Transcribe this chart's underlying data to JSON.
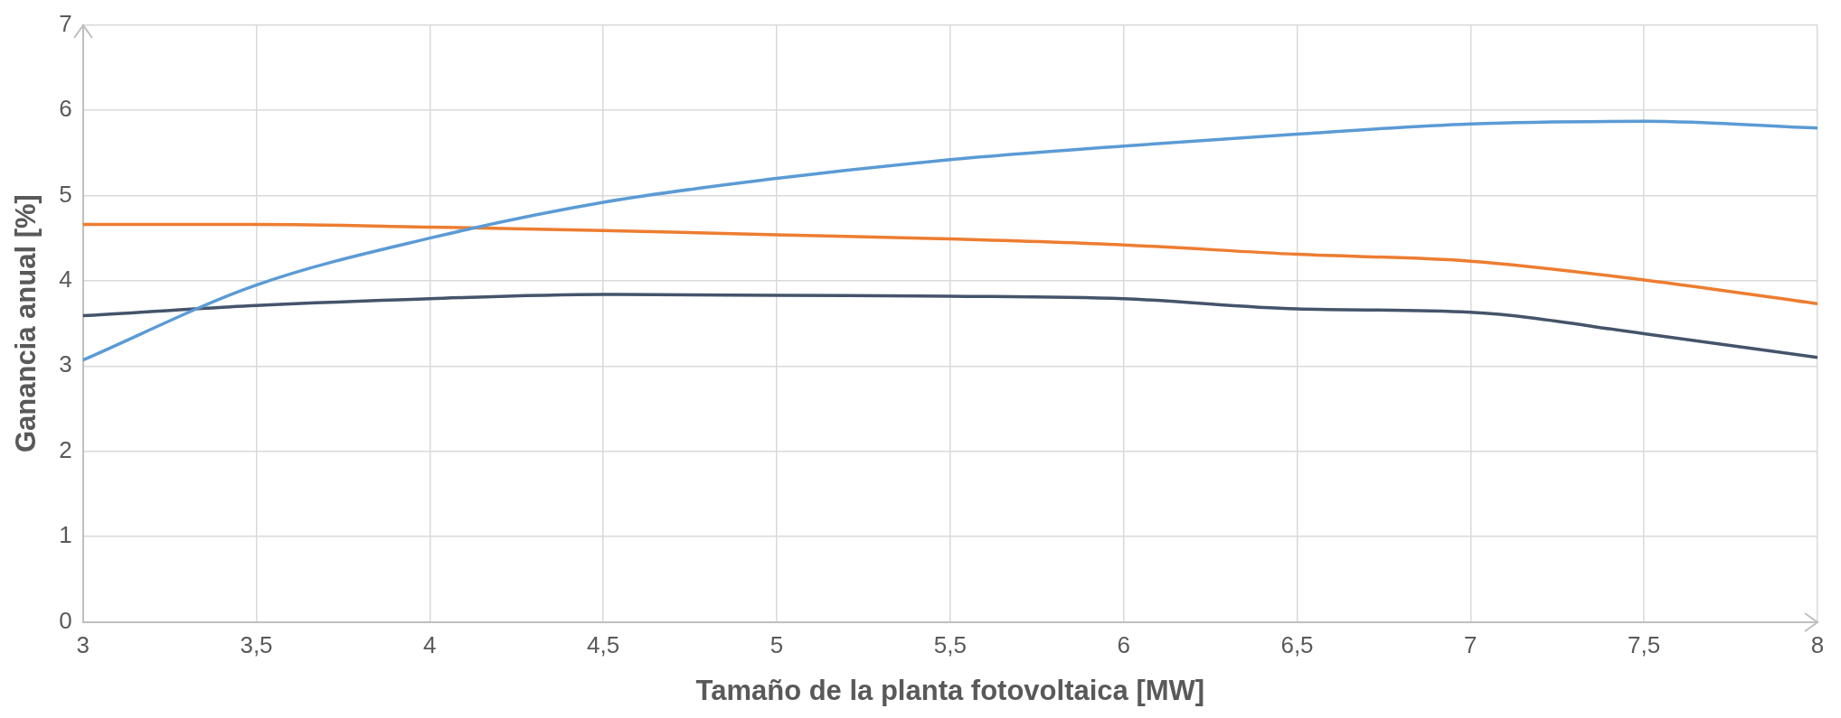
{
  "chart_data": {
    "type": "line",
    "xlabel": "Tamaño de la planta fotovoltaica [MW]",
    "ylabel": "Ganancia anual [%]",
    "x": [
      3,
      3.5,
      4,
      4.5,
      5,
      5.5,
      6,
      6.5,
      7,
      7.5,
      8
    ],
    "series": [
      {
        "color": "#5b9bd5",
        "values": [
          3.07,
          3.95,
          4.5,
          4.92,
          5.2,
          5.42,
          5.58,
          5.72,
          5.84,
          5.87,
          5.79
        ]
      },
      {
        "color": "#ed7d31",
        "values": [
          4.66,
          4.66,
          4.63,
          4.59,
          4.54,
          4.49,
          4.42,
          4.31,
          4.23,
          4.01,
          3.73
        ]
      },
      {
        "color": "#44546a",
        "values": [
          3.59,
          3.71,
          3.79,
          3.84,
          3.83,
          3.82,
          3.79,
          3.67,
          3.63,
          3.38,
          3.1
        ]
      }
    ],
    "xlim": [
      3,
      8
    ],
    "xticks": [
      {
        "value": 3,
        "label": "3"
      },
      {
        "value": 3.5,
        "label": "3,5"
      },
      {
        "value": 4,
        "label": "4"
      },
      {
        "value": 4.5,
        "label": "4,5"
      },
      {
        "value": 5,
        "label": "5"
      },
      {
        "value": 5.5,
        "label": "5,5"
      },
      {
        "value": 6,
        "label": "6"
      },
      {
        "value": 6.5,
        "label": "6,5"
      },
      {
        "value": 7,
        "label": "7"
      },
      {
        "value": 7.5,
        "label": "7,5"
      },
      {
        "value": 8,
        "label": "8"
      }
    ],
    "ylim": [
      0,
      7
    ],
    "yticks": [
      0,
      1,
      2,
      3,
      4,
      5,
      6,
      7
    ],
    "grid": true,
    "legend": false,
    "marker": "none",
    "line_style": "solid"
  }
}
